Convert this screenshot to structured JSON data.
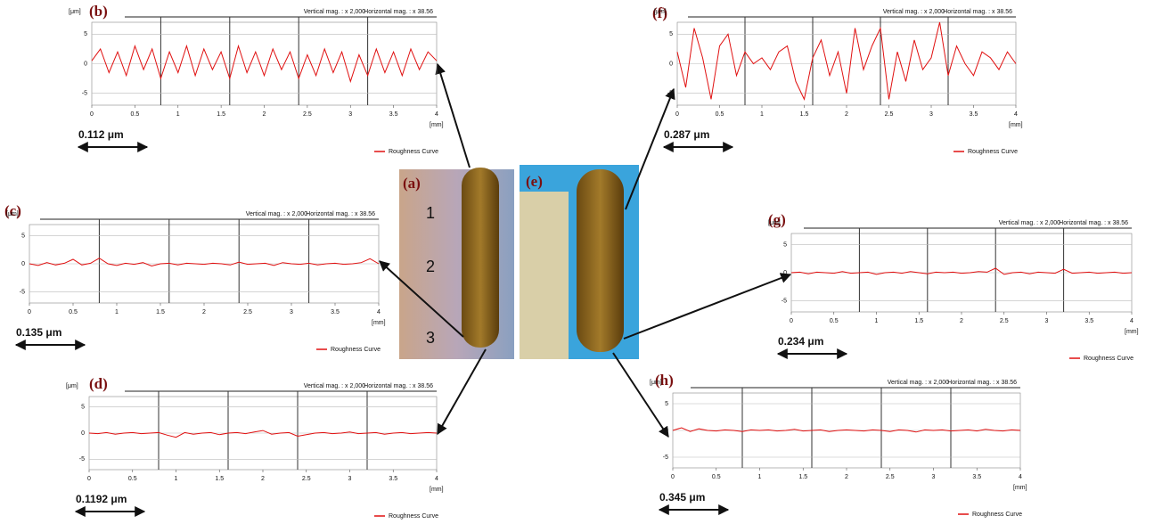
{
  "photos": [
    {
      "label": "(a)",
      "ruler": [
        "1",
        "2",
        "3"
      ]
    },
    {
      "label": "(e)"
    }
  ],
  "chart_data": [
    {
      "type": "line",
      "panel_label": "(b)",
      "annotations": [
        "Vertical mag. : x 2,000",
        "Horizontal mag. : x 38.56"
      ],
      "ylabel": "[μm]",
      "xlabel": "[mm]",
      "roughness": "0.112 μm",
      "x": [
        0,
        0.1,
        0.2,
        0.3,
        0.4,
        0.5,
        0.6,
        0.7,
        0.8,
        0.9,
        1,
        1.1,
        1.2,
        1.3,
        1.4,
        1.5,
        1.6,
        1.7,
        1.8,
        1.9,
        2,
        2.1,
        2.2,
        2.3,
        2.4,
        2.5,
        2.6,
        2.7,
        2.8,
        2.9,
        3,
        3.1,
        3.2,
        3.3,
        3.4,
        3.5,
        3.6,
        3.7,
        3.8,
        3.9,
        4
      ],
      "series": [
        {
          "name": "Roughness Curve",
          "color": "#e01010",
          "values": [
            0.5,
            2.5,
            -1.5,
            2,
            -2,
            3,
            -1,
            2.5,
            -2.5,
            2,
            -1.5,
            3,
            -2,
            2.5,
            -1,
            2,
            -2.5,
            3,
            -1.5,
            2,
            -2,
            2.5,
            -1,
            2,
            -2.5,
            1.5,
            -2,
            2.5,
            -1.5,
            2,
            -3,
            1.5,
            -2,
            2.5,
            -1.5,
            2,
            -2,
            2.5,
            -1,
            2,
            0.5
          ]
        }
      ],
      "xlim": [
        0,
        4
      ],
      "ylim": [
        -7,
        7
      ],
      "xticks": [
        0,
        0.5,
        1,
        1.5,
        2,
        2.5,
        3,
        3.5,
        4
      ],
      "yticks": [
        -5,
        0,
        5
      ],
      "grid": true
    },
    {
      "type": "line",
      "panel_label": "(f)",
      "annotations": [
        "Vertical mag. : x 2,000",
        "Horizontal mag. : x 38.56"
      ],
      "ylabel": "[μm]",
      "xlabel": "[mm]",
      "roughness": "0.287 μm",
      "x": [
        0,
        0.1,
        0.2,
        0.3,
        0.4,
        0.5,
        0.6,
        0.7,
        0.8,
        0.9,
        1,
        1.1,
        1.2,
        1.3,
        1.4,
        1.5,
        1.6,
        1.7,
        1.8,
        1.9,
        2,
        2.1,
        2.2,
        2.3,
        2.4,
        2.5,
        2.6,
        2.7,
        2.8,
        2.9,
        3,
        3.1,
        3.2,
        3.3,
        3.4,
        3.5,
        3.6,
        3.7,
        3.8,
        3.9,
        4
      ],
      "series": [
        {
          "name": "Roughness Curve",
          "color": "#e01010",
          "values": [
            2,
            -4,
            6,
            1,
            -6,
            3,
            5,
            -2,
            2,
            0,
            1,
            -1,
            2,
            3,
            -3,
            -6,
            1,
            4,
            -2,
            2,
            -5,
            6,
            -1,
            3,
            6,
            -6,
            2,
            -3,
            4,
            -1,
            1,
            7,
            -2,
            3,
            0,
            -2,
            2,
            1,
            -1,
            2,
            0
          ]
        }
      ],
      "xlim": [
        0,
        4
      ],
      "ylim": [
        -7,
        7
      ],
      "xticks": [
        0,
        0.5,
        1,
        1.5,
        2,
        2.5,
        3,
        3.5,
        4
      ],
      "yticks": [
        -5,
        0,
        5
      ],
      "grid": true
    },
    {
      "type": "line",
      "panel_label": "(c)",
      "annotations": [
        "Vertical mag. : x 2,000",
        "Horizontal mag. : x 38.56"
      ],
      "ylabel": "[μm]",
      "xlabel": "[mm]",
      "roughness": "0.135 μm",
      "x": [
        0,
        0.1,
        0.2,
        0.3,
        0.4,
        0.5,
        0.6,
        0.7,
        0.8,
        0.9,
        1,
        1.1,
        1.2,
        1.3,
        1.4,
        1.5,
        1.6,
        1.7,
        1.8,
        1.9,
        2,
        2.1,
        2.2,
        2.3,
        2.4,
        2.5,
        2.6,
        2.7,
        2.8,
        2.9,
        3,
        3.1,
        3.2,
        3.3,
        3.4,
        3.5,
        3.6,
        3.7,
        3.8,
        3.9,
        4
      ],
      "series": [
        {
          "name": "Roughness Curve",
          "color": "#e01010",
          "values": [
            0,
            -0.3,
            0.2,
            -0.2,
            0.1,
            0.8,
            -0.2,
            0.1,
            1,
            0,
            -0.3,
            0.1,
            -0.1,
            0.2,
            -0.4,
            0,
            0.1,
            -0.2,
            0.1,
            0,
            -0.1,
            0.1,
            0,
            -0.2,
            0.3,
            -0.1,
            0,
            0.1,
            -0.3,
            0.2,
            0,
            -0.1,
            0.1,
            -0.2,
            0,
            0.1,
            -0.1,
            0,
            0.2,
            0.9,
            0
          ]
        }
      ],
      "xlim": [
        0,
        4
      ],
      "ylim": [
        -7,
        7
      ],
      "xticks": [
        0,
        0.5,
        1,
        1.5,
        2,
        2.5,
        3,
        3.5,
        4
      ],
      "yticks": [
        -5,
        0,
        5
      ],
      "grid": true
    },
    {
      "type": "line",
      "panel_label": "(g)",
      "annotations": [
        "Vertical mag. : x 2,000",
        "Horizontal mag. : x 38.56"
      ],
      "ylabel": "[μm]",
      "xlabel": "[mm]",
      "roughness": "0.234 μm",
      "x": [
        0,
        0.1,
        0.2,
        0.3,
        0.4,
        0.5,
        0.6,
        0.7,
        0.8,
        0.9,
        1,
        1.1,
        1.2,
        1.3,
        1.4,
        1.5,
        1.6,
        1.7,
        1.8,
        1.9,
        2,
        2.1,
        2.2,
        2.3,
        2.4,
        2.5,
        2.6,
        2.7,
        2.8,
        2.9,
        3,
        3.1,
        3.2,
        3.3,
        3.4,
        3.5,
        3.6,
        3.7,
        3.8,
        3.9,
        4
      ],
      "series": [
        {
          "name": "Roughness Curve",
          "color": "#e01010",
          "values": [
            0,
            0.1,
            -0.2,
            0.1,
            0,
            -0.1,
            0.2,
            -0.1,
            0,
            0.1,
            -0.3,
            0,
            0.1,
            -0.1,
            0.2,
            0,
            -0.2,
            0.1,
            0,
            0.1,
            -0.1,
            0,
            0.2,
            0.1,
            0.8,
            -0.3,
            0,
            0.1,
            -0.2,
            0.1,
            0,
            -0.1,
            0.6,
            -0.1,
            0,
            0.1,
            -0.1,
            0,
            0.1,
            -0.1,
            0
          ]
        }
      ],
      "xlim": [
        0,
        4
      ],
      "ylim": [
        -7,
        7
      ],
      "xticks": [
        0,
        0.5,
        1,
        1.5,
        2,
        2.5,
        3,
        3.5,
        4
      ],
      "yticks": [
        -5,
        0,
        5
      ],
      "grid": true
    },
    {
      "type": "line",
      "panel_label": "(d)",
      "annotations": [
        "Vertical mag. : x 2,000",
        "Horizontal mag. : x 38.56"
      ],
      "ylabel": "[μm]",
      "xlabel": "[mm]",
      "roughness": "0.1192 μm",
      "x": [
        0,
        0.1,
        0.2,
        0.3,
        0.4,
        0.5,
        0.6,
        0.7,
        0.8,
        0.9,
        1,
        1.1,
        1.2,
        1.3,
        1.4,
        1.5,
        1.6,
        1.7,
        1.8,
        1.9,
        2,
        2.1,
        2.2,
        2.3,
        2.4,
        2.5,
        2.6,
        2.7,
        2.8,
        2.9,
        3,
        3.1,
        3.2,
        3.3,
        3.4,
        3.5,
        3.6,
        3.7,
        3.8,
        3.9,
        4
      ],
      "series": [
        {
          "name": "Roughness Curve",
          "color": "#e01010",
          "values": [
            0,
            -0.1,
            0.1,
            -0.2,
            0,
            0.1,
            -0.1,
            0,
            0.1,
            -0.4,
            -0.8,
            0.1,
            -0.2,
            0,
            0.1,
            -0.3,
            0,
            0.1,
            -0.1,
            0.2,
            0.5,
            -0.2,
            0,
            0.1,
            -0.6,
            -0.3,
            0,
            0.1,
            -0.1,
            0,
            0.2,
            -0.1,
            0,
            0.1,
            -0.2,
            0,
            0.1,
            -0.1,
            0,
            0.1,
            0
          ]
        }
      ],
      "xlim": [
        0,
        4
      ],
      "ylim": [
        -7,
        7
      ],
      "xticks": [
        0,
        0.5,
        1,
        1.5,
        2,
        2.5,
        3,
        3.5,
        4
      ],
      "yticks": [
        -5,
        0,
        5
      ],
      "grid": true
    },
    {
      "type": "line",
      "panel_label": "(h)",
      "annotations": [
        "Vertical mag. : x 2,000",
        "Horizontal mag. : x 38.56"
      ],
      "ylabel": "[μm]",
      "xlabel": "[mm]",
      "roughness": "0.345 μm",
      "x": [
        0,
        0.1,
        0.2,
        0.3,
        0.4,
        0.5,
        0.6,
        0.7,
        0.8,
        0.9,
        1,
        1.1,
        1.2,
        1.3,
        1.4,
        1.5,
        1.6,
        1.7,
        1.8,
        1.9,
        2,
        2.1,
        2.2,
        2.3,
        2.4,
        2.5,
        2.6,
        2.7,
        2.8,
        2.9,
        3,
        3.1,
        3.2,
        3.3,
        3.4,
        3.5,
        3.6,
        3.7,
        3.8,
        3.9,
        4
      ],
      "series": [
        {
          "name": "Roughness Curve",
          "color": "#e01010",
          "values": [
            0,
            0.5,
            -0.2,
            0.3,
            0,
            -0.1,
            0.1,
            0,
            -0.2,
            0.1,
            0,
            0.1,
            -0.1,
            0,
            0.2,
            -0.1,
            0,
            0.1,
            -0.2,
            0,
            0.1,
            0,
            -0.1,
            0.1,
            0,
            -0.2,
            0.1,
            0,
            -0.3,
            0.1,
            0,
            0.1,
            -0.1,
            0,
            0.1,
            -0.1,
            0.2,
            0,
            -0.1,
            0.1,
            0
          ]
        }
      ],
      "xlim": [
        0,
        4
      ],
      "ylim": [
        -7,
        7
      ],
      "xticks": [
        0,
        0.5,
        1,
        1.5,
        2,
        2.5,
        3,
        3.5,
        4
      ],
      "yticks": [
        -5,
        0,
        5
      ],
      "grid": true
    }
  ]
}
